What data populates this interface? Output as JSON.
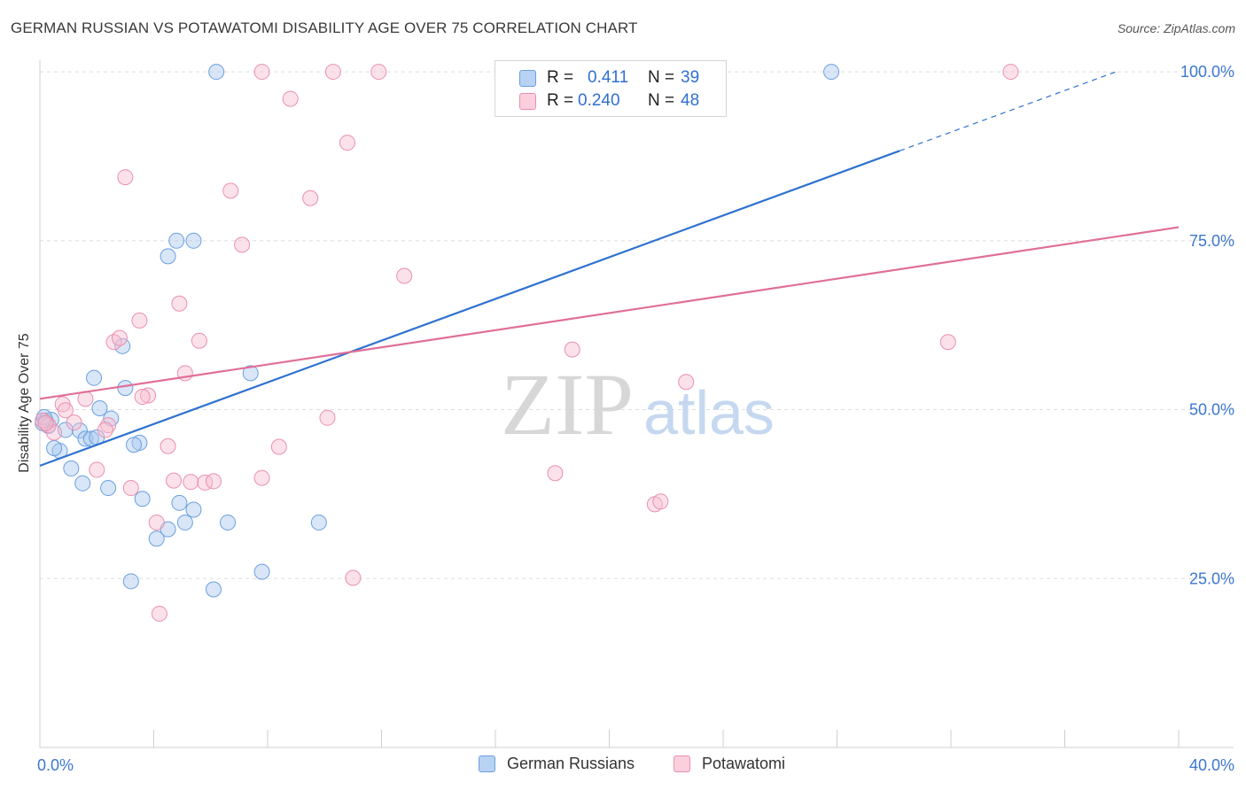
{
  "title": "GERMAN RUSSIAN VS POTAWATOMI DISABILITY AGE OVER 75 CORRELATION CHART",
  "source": "Source: ZipAtlas.com",
  "watermark": {
    "zip": "ZIP",
    "atlas": "atlas"
  },
  "legend": {
    "rows": [
      {
        "r_label": "R =",
        "r_value": "0.411",
        "n_label": "N =",
        "n_value": "39"
      },
      {
        "r_label": "R =",
        "r_value": "0.240",
        "n_label": "N =",
        "n_value": "48"
      }
    ]
  },
  "bottom_legend": [
    "German Russians",
    "Potawatomi"
  ],
  "colors": {
    "blue_fill": "#a9c8f0",
    "blue_stroke": "#6b9fe0",
    "blue_line": "#2f72d0",
    "pink_fill": "#f7bfd0",
    "pink_stroke": "#ea8fae",
    "pink_line": "#e06f98",
    "axis_text": "#3d77cf",
    "grid": "#dddddd"
  },
  "chart_data": {
    "type": "scatter",
    "title": "GERMAN RUSSIAN VS POTAWATOMI DISABILITY AGE OVER 75 CORRELATION CHART",
    "xlabel": "",
    "ylabel": "Disability Age Over 75",
    "xlim": [
      0,
      40
    ],
    "ylim": [
      0,
      102.5
    ],
    "x_tick_labels": [
      {
        "value": 0,
        "label": "0.0%"
      },
      {
        "value": 40,
        "label": "40.0%"
      }
    ],
    "y_tick_labels": [
      {
        "value": 25,
        "label": "25.0%"
      },
      {
        "value": 50,
        "label": "50.0%"
      },
      {
        "value": 75,
        "label": "75.0%"
      },
      {
        "value": 100,
        "label": "100.0%"
      }
    ],
    "grid": "horizontal dashed",
    "series": [
      {
        "name": "German Russians",
        "r": 0.411,
        "n": 39,
        "trend": {
          "x0": 0,
          "y0": 41.7,
          "x1": 30.2,
          "y1": 88.3,
          "dash_to_x": 37.8,
          "dash_to_y": 100
        },
        "points": [
          [
            6.2,
            100
          ],
          [
            27.8,
            100
          ],
          [
            4.8,
            75
          ],
          [
            5.4,
            75
          ],
          [
            4.5,
            72.7
          ],
          [
            2.9,
            59.4
          ],
          [
            7.4,
            55.4
          ],
          [
            1.9,
            54.7
          ],
          [
            3.0,
            53.2
          ],
          [
            2.1,
            50.2
          ],
          [
            2.5,
            48.7
          ],
          [
            0.2,
            48.4
          ],
          [
            0.4,
            48.5
          ],
          [
            0.9,
            47
          ],
          [
            1.4,
            46.9
          ],
          [
            1.6,
            45.7
          ],
          [
            1.8,
            45.7
          ],
          [
            3.5,
            45.1
          ],
          [
            3.3,
            44.8
          ],
          [
            0.7,
            43.9
          ],
          [
            0.5,
            44.3
          ],
          [
            1.1,
            41.3
          ],
          [
            1.5,
            39.1
          ],
          [
            2.4,
            38.4
          ],
          [
            3.6,
            36.8
          ],
          [
            4.9,
            36.2
          ],
          [
            5.4,
            35.2
          ],
          [
            5.1,
            33.3
          ],
          [
            6.6,
            33.3
          ],
          [
            9.8,
            33.3
          ],
          [
            4.5,
            32.3
          ],
          [
            4.1,
            30.9
          ],
          [
            7.8,
            26
          ],
          [
            3.2,
            24.6
          ],
          [
            6.1,
            23.4
          ],
          [
            0.1,
            48.0
          ],
          [
            0.3,
            47.6
          ],
          [
            0.15,
            48.9
          ],
          [
            2.0,
            45.9
          ]
        ]
      },
      {
        "name": "Potawatomi",
        "r": 0.24,
        "n": 48,
        "trend": {
          "x0": 0,
          "y0": 51.6,
          "x1": 40,
          "y1": 77
        },
        "points": [
          [
            7.8,
            100
          ],
          [
            10.3,
            100
          ],
          [
            11.9,
            100
          ],
          [
            34.1,
            100
          ],
          [
            8.8,
            96
          ],
          [
            10.8,
            89.5
          ],
          [
            3.0,
            84.4
          ],
          [
            6.7,
            82.4
          ],
          [
            9.5,
            81.3
          ],
          [
            7.1,
            74.4
          ],
          [
            12.8,
            69.8
          ],
          [
            4.9,
            65.7
          ],
          [
            3.5,
            63.2
          ],
          [
            2.6,
            60
          ],
          [
            2.8,
            60.6
          ],
          [
            5.6,
            60.2
          ],
          [
            18.7,
            58.9
          ],
          [
            31.9,
            60
          ],
          [
            5.1,
            55.4
          ],
          [
            22.7,
            54.1
          ],
          [
            3.8,
            52.1
          ],
          [
            3.6,
            51.9
          ],
          [
            1.6,
            51.6
          ],
          [
            0.8,
            50.8
          ],
          [
            0.9,
            49.9
          ],
          [
            10.1,
            48.8
          ],
          [
            1.2,
            48.1
          ],
          [
            0.3,
            47.7
          ],
          [
            2.4,
            47.7
          ],
          [
            2.3,
            47
          ],
          [
            0.5,
            46.6
          ],
          [
            4.5,
            44.6
          ],
          [
            8.4,
            44.5
          ],
          [
            2.0,
            41.1
          ],
          [
            18.1,
            40.6
          ],
          [
            7.8,
            39.9
          ],
          [
            4.7,
            39.5
          ],
          [
            5.3,
            39.3
          ],
          [
            5.8,
            39.2
          ],
          [
            6.1,
            39.4
          ],
          [
            3.2,
            38.4
          ],
          [
            21.6,
            36
          ],
          [
            21.8,
            36.4
          ],
          [
            4.1,
            33.3
          ],
          [
            11.0,
            25.1
          ],
          [
            4.2,
            19.8
          ],
          [
            0.1,
            48.4
          ],
          [
            0.2,
            48.0
          ]
        ]
      }
    ]
  }
}
